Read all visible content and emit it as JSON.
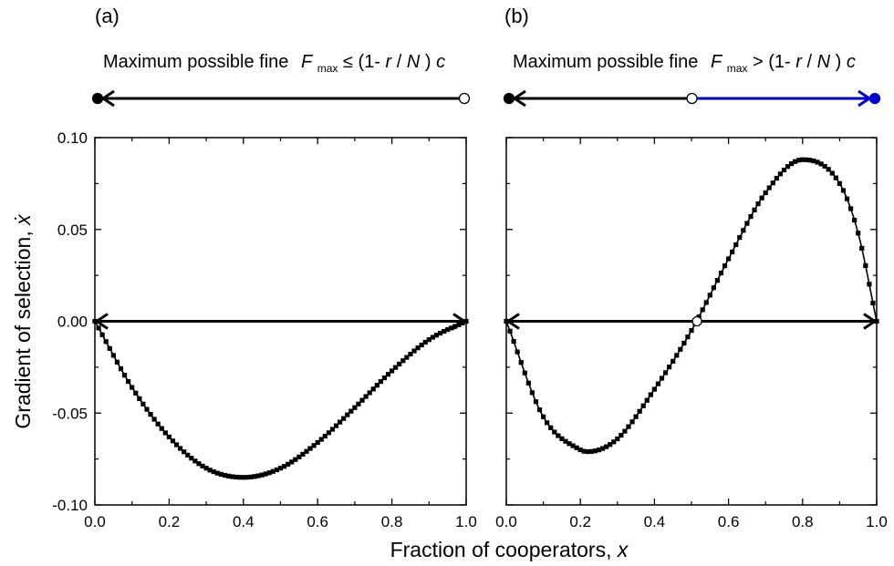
{
  "chart_data": [
    {
      "type": "scatter",
      "panel_label": "(a)",
      "title_prefix": "Maximum possible fine",
      "title_var": "F",
      "title_sub": "max",
      "title_relation": "≤ (1-",
      "title_r": "r",
      "title_slash": "/",
      "title_N": "N",
      "title_close": ")",
      "title_c": "c",
      "xlim": [
        0.0,
        1.0
      ],
      "ylim": [
        -0.1,
        0.1
      ],
      "x_ticks": [
        "0.0",
        "0.2",
        "0.4",
        "0.6",
        "0.8",
        "1.0"
      ],
      "y_ticks": [
        "0.10",
        "0.05",
        "0.00",
        "-0.05",
        "-0.10"
      ],
      "ylabel_text": "Gradient of selection, ",
      "ylabel_var": "ẋ",
      "grid": false,
      "curve": {
        "x": [
          0.0,
          0.1,
          0.2,
          0.3,
          0.4,
          0.5,
          0.6,
          0.7,
          0.8,
          0.9,
          1.0
        ],
        "y": [
          0.0,
          -0.036,
          -0.063,
          -0.08,
          -0.085,
          -0.08,
          -0.066,
          -0.047,
          -0.027,
          -0.01,
          0.0
        ]
      },
      "fixed_points": [
        {
          "x": 0.0,
          "stability": "stable"
        },
        {
          "x": 1.0,
          "stability": "unstable"
        }
      ],
      "flow_segments": [
        {
          "from": 1.0,
          "to": 0.0,
          "color": "#000000"
        }
      ]
    },
    {
      "type": "scatter",
      "panel_label": "(b)",
      "title_prefix": "Maximum possible fine",
      "title_var": "F",
      "title_sub": "max",
      "title_relation": "> (1-",
      "title_r": "r",
      "title_slash": "/",
      "title_N": "N",
      "title_close": ")",
      "title_c": "c",
      "xlim": [
        0.0,
        1.0
      ],
      "ylim": [
        -0.1,
        0.1
      ],
      "x_ticks": [
        "0.0",
        "0.2",
        "0.4",
        "0.6",
        "0.8",
        "1.0"
      ],
      "grid": false,
      "curve": {
        "x": [
          0.0,
          0.1,
          0.2,
          0.22,
          0.3,
          0.4,
          0.5,
          0.6,
          0.7,
          0.8,
          0.9,
          0.95,
          1.0
        ],
        "y": [
          0.0,
          -0.052,
          -0.07,
          -0.071,
          -0.064,
          -0.037,
          -0.005,
          0.034,
          0.07,
          0.088,
          0.075,
          0.048,
          0.0
        ]
      },
      "fixed_points": [
        {
          "x": 0.0,
          "stability": "stable"
        },
        {
          "x": 0.5,
          "stability": "unstable"
        },
        {
          "x": 1.0,
          "stability": "stable"
        }
      ],
      "flow_segments": [
        {
          "from": 0.5,
          "to": 0.0,
          "color": "#000000"
        },
        {
          "from": 0.5,
          "to": 1.0,
          "color": "#0000cc"
        }
      ],
      "zero_crossing_marker": {
        "x": 0.515,
        "y": 0.0
      }
    }
  ],
  "shared_xlabel_text": "Fraction of cooperators, ",
  "shared_xlabel_var": "x"
}
